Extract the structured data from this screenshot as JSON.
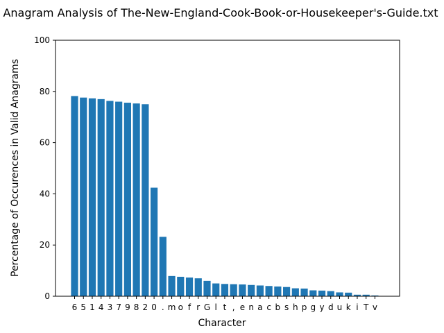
{
  "chart_data": {
    "type": "bar",
    "title": "Anagram Analysis of The-New-England-Cook-Book-or-Housekeeper's-Guide.txt",
    "xlabel": "Character",
    "ylabel": "Percentage of Occurences in Valid Anagrams",
    "ylim": [
      0,
      100
    ],
    "yticks": [
      "0",
      "20",
      "40",
      "60",
      "80",
      "100"
    ],
    "grid": false,
    "bar_color": "#1f77b4",
    "categories": [
      "6",
      "5",
      "1",
      "4",
      "3",
      "7",
      "9",
      "8",
      "2",
      "0",
      ".",
      "m",
      "o",
      "f",
      "r",
      "G",
      "l",
      "t",
      ",",
      "e",
      "n",
      "a",
      "c",
      "b",
      "s",
      "h",
      "p",
      "g",
      "y",
      "d",
      "u",
      "k",
      "i",
      "T",
      "v"
    ],
    "values": [
      78.2,
      77.6,
      77.3,
      77.0,
      76.3,
      76.0,
      75.6,
      75.3,
      75.0,
      42.4,
      23.2,
      7.9,
      7.6,
      7.3,
      7.0,
      6.0,
      5.0,
      4.8,
      4.7,
      4.6,
      4.4,
      4.2,
      4.0,
      3.8,
      3.6,
      3.1,
      3.0,
      2.3,
      2.2,
      2.0,
      1.5,
      1.4,
      0.6,
      0.6,
      0.3
    ]
  }
}
